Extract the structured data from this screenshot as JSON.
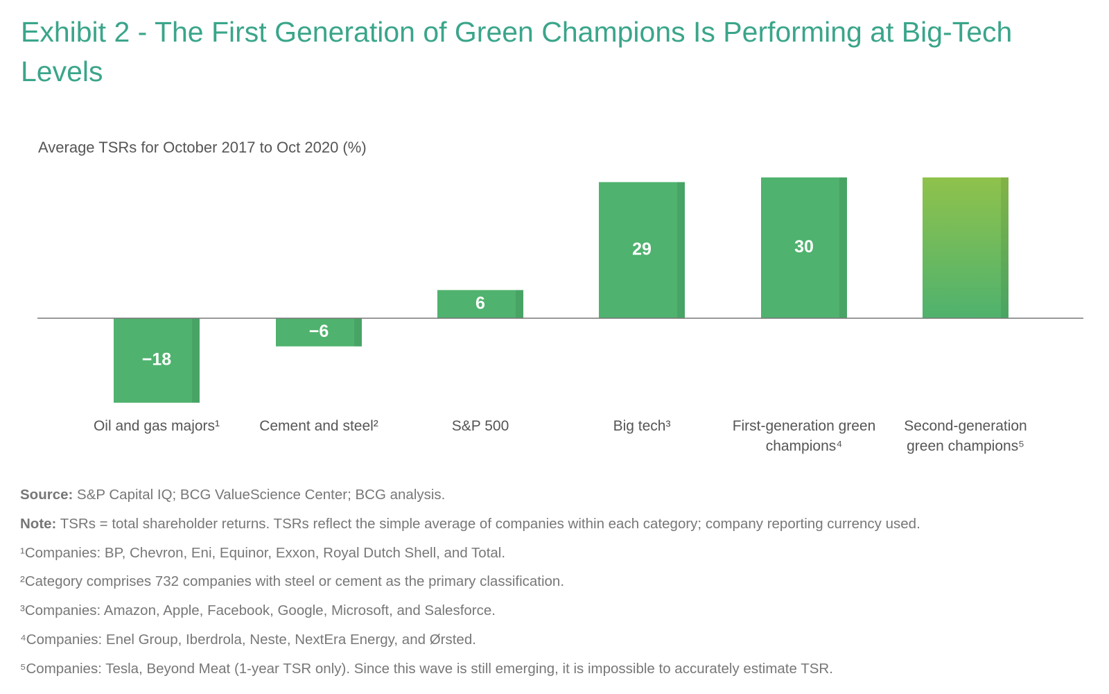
{
  "chart_data": {
    "type": "bar",
    "title": "Exhibit 2 - The First Generation of Green Champions Is Performing at Big-Tech Levels",
    "subtitle": "Average TSRs for October 2017 to Oct 2020 (%)",
    "categories": [
      "Oil and gas majors¹",
      "Cement and steel²",
      "S&P 500",
      "Big tech³",
      "First-generation green champions⁴",
      "Second-generation green champions⁵"
    ],
    "values": [
      -18,
      -6,
      6,
      29,
      30,
      30
    ],
    "value_labels": [
      "−18",
      "−6",
      "6",
      "29",
      "30",
      null
    ],
    "color": "#4fb26e",
    "gradient_color": "#8fc24c"
  },
  "notes": {
    "source": {
      "label": "Source:",
      "text": "S&P Capital IQ; BCG ValueScience Center; BCG analysis."
    },
    "note": {
      "label": "Note:",
      "text": "TSRs = total shareholder returns. TSRs reflect the simple average of companies within each category; company reporting currency used."
    },
    "footnotes": [
      "¹Companies: BP, Chevron, Eni, Equinor, Exxon, Royal Dutch Shell, and Total.",
      "²Category comprises 732 companies with steel or cement as the primary classification.",
      "³Companies: Amazon, Apple, Facebook, Google, Microsoft, and Salesforce.",
      "⁴Companies: Enel Group, Iberdrola, Neste, NextEra Energy, and Ørsted.",
      "⁵Companies: Tesla, Beyond Meat (1-year TSR only). Since this wave is still emerging, it is impossible to accurately estimate TSR."
    ]
  }
}
